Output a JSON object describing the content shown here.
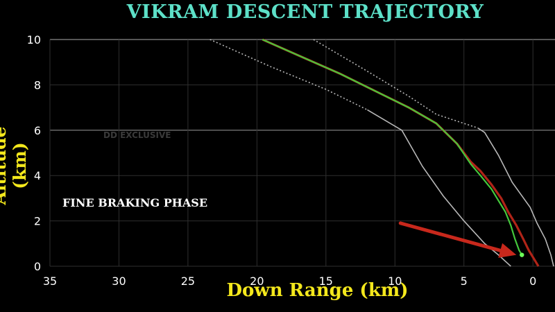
{
  "colors": {
    "title": "#5de0c8",
    "axis_label": "#f4e81c",
    "grid": "#2f2f2f",
    "actual": "#44c83c",
    "planned": "#b02418",
    "bound": "#b8b8b8",
    "arrow": "#c8281c"
  },
  "watermark": "DD EXCLUSIVE",
  "annotation": "FINE BRAKING PHASE",
  "chart_data": {
    "type": "line",
    "title": "VIKRAM DESCENT TRAJECTORY",
    "xlabel": "Down Range (km)",
    "ylabel": "Altitude (km)",
    "xlim": [
      35,
      -1.6
    ],
    "ylim": [
      0,
      10
    ],
    "x_ticks": [
      35,
      30,
      25,
      20,
      15,
      10,
      5,
      0
    ],
    "y_ticks": [
      0,
      2,
      4,
      6,
      8,
      10
    ],
    "grid": true,
    "series": [
      {
        "key": "upper_bound",
        "style": "dotted-then-solid",
        "x": [
          15.9,
          12,
          9,
          7,
          4,
          3.5,
          2.5,
          1.5,
          0.2,
          -0.3,
          -0.9,
          -1.3,
          -1.5
        ],
        "y": [
          10,
          8.6,
          7.5,
          6.7,
          6.1,
          5.9,
          4.9,
          3.7,
          2.6,
          1.9,
          1.2,
          0.5,
          0
        ]
      },
      {
        "key": "lower_bound",
        "style": "dotted-then-solid",
        "x": [
          23.4,
          19,
          15,
          12,
          9.5,
          8,
          6.5,
          5,
          3.5,
          2.5,
          1.6
        ],
        "y": [
          10,
          8.8,
          7.8,
          6.9,
          6.0,
          4.4,
          3.1,
          2.0,
          1.0,
          0.5,
          0
        ]
      },
      {
        "key": "planned",
        "style": "solid",
        "x": [
          19.6,
          17,
          14,
          11,
          9,
          7,
          5.5,
          4.5,
          3.8,
          3.0,
          2.3,
          1.8,
          1.2,
          0.7,
          0.3,
          -0.1,
          -0.4
        ],
        "y": [
          10,
          9.3,
          8.5,
          7.6,
          7.0,
          6.3,
          5.4,
          4.6,
          4.2,
          3.6,
          3.0,
          2.4,
          1.8,
          1.2,
          0.7,
          0.3,
          0
        ]
      },
      {
        "key": "actual",
        "style": "solid",
        "x": [
          19.6,
          17,
          14,
          11,
          9,
          7,
          5.5,
          4.5,
          3.8,
          3.0,
          2.5,
          2.0,
          1.6,
          1.3,
          1.0,
          0.8
        ],
        "y": [
          10,
          9.3,
          8.5,
          7.6,
          7.0,
          6.3,
          5.4,
          4.5,
          4.0,
          3.4,
          2.9,
          2.4,
          1.8,
          1.2,
          0.7,
          0.5
        ]
      }
    ],
    "arrow": {
      "from": [
        9.6,
        1.9
      ],
      "to": [
        1.2,
        0.5
      ]
    },
    "marker": {
      "x": 0.8,
      "y": 0.5
    }
  }
}
